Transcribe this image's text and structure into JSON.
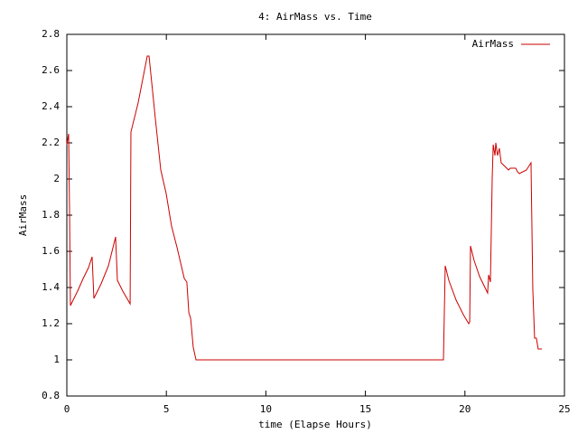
{
  "chart_data": {
    "type": "line",
    "title": "4: AirMass vs. Time",
    "x_label": "time (Elapse Hours)",
    "y_label": "AirMass",
    "x": [
      0,
      0.09,
      0.14,
      0.18,
      0.54,
      0.82,
      1.09,
      1.27,
      1.36,
      1.72,
      2.09,
      2.45,
      2.54,
      2.81,
      3.18,
      3.22,
      3.58,
      4.04,
      4.13,
      4.45,
      4.72,
      4.99,
      5.26,
      5.54,
      5.9,
      6.03,
      6.13,
      6.22,
      6.35,
      6.49,
      18.92,
      19.01,
      19.19,
      19.56,
      19.92,
      20.19,
      20.24,
      20.28,
      20.46,
      20.74,
      21.14,
      21.19,
      21.28,
      21.37,
      21.42,
      21.51,
      21.55,
      21.64,
      21.73,
      21.82,
      22.19,
      22.28,
      22.55,
      22.64,
      22.73,
      23.09,
      23.32,
      23.41,
      23.5,
      23.59,
      23.68,
      23.87
    ],
    "series": [
      {
        "name": "AirMass",
        "color": "#cc0000",
        "values": [
          2.19,
          2.25,
          1.79,
          1.3,
          1.38,
          1.45,
          1.51,
          1.57,
          1.34,
          1.42,
          1.52,
          1.68,
          1.44,
          1.38,
          1.31,
          2.26,
          2.42,
          2.68,
          2.68,
          2.33,
          2.05,
          1.92,
          1.74,
          1.62,
          1.45,
          1.43,
          1.26,
          1.23,
          1.07,
          1.0,
          1.0,
          1.52,
          1.44,
          1.33,
          1.25,
          1.2,
          1.21,
          1.63,
          1.55,
          1.46,
          1.37,
          1.47,
          1.43,
          2.0,
          2.19,
          2.13,
          2.2,
          2.13,
          2.17,
          2.09,
          2.05,
          2.06,
          2.06,
          2.04,
          2.03,
          2.05,
          2.09,
          1.39,
          1.12,
          1.12,
          1.06,
          1.06
        ]
      }
    ],
    "xlim": [
      0,
      25
    ],
    "xticks": [
      0,
      5,
      10,
      15,
      20,
      25
    ],
    "ylim": [
      0.8,
      2.8
    ],
    "yticks": [
      0.8,
      1,
      1.2,
      1.4,
      1.6,
      1.8,
      2,
      2.2,
      2.4,
      2.6,
      2.8
    ],
    "legend": "top-right",
    "grid": false
  }
}
